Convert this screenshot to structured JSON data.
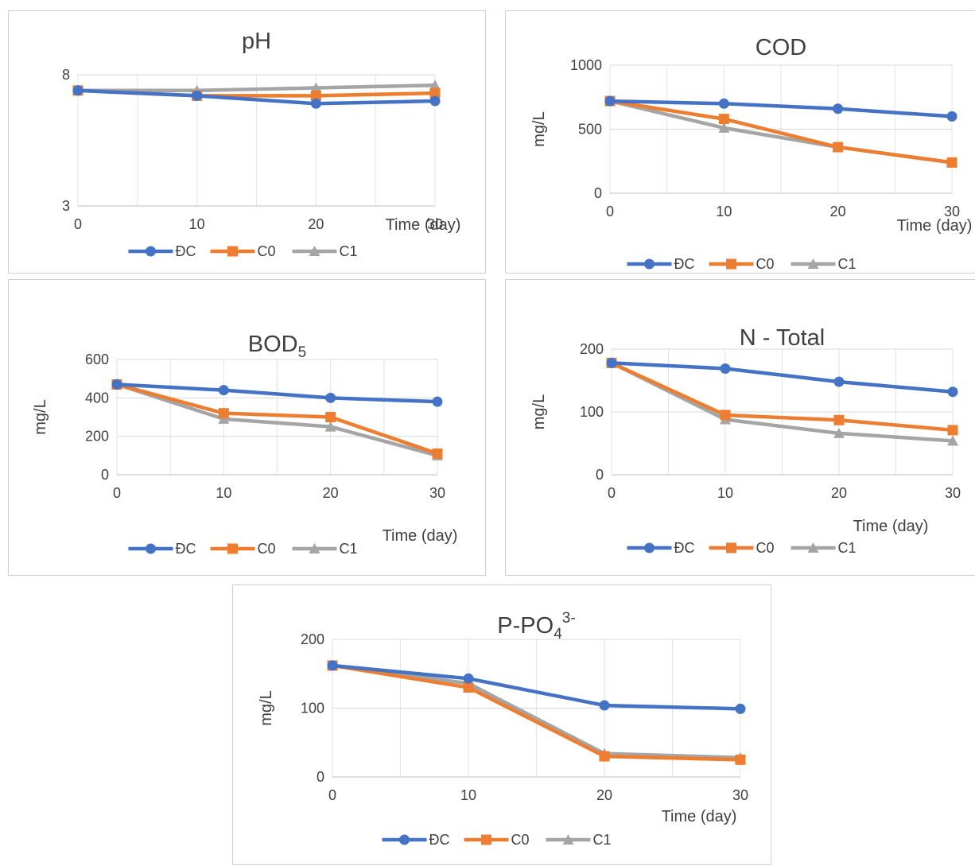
{
  "colors": {
    "DC": "#4472C4",
    "C0": "#ED7D31",
    "C1": "#A5A5A5"
  },
  "chart_data": [
    {
      "type": "line",
      "title": "pH",
      "title_sub": "",
      "title_sup": "",
      "xlabel": "Time (day)",
      "ylabel": "",
      "x": [
        0,
        10,
        20,
        30
      ],
      "xticks": [
        "0",
        "10",
        "20",
        "30"
      ],
      "yticks": [
        "3",
        "8"
      ],
      "ylim": [
        3,
        8
      ],
      "series": [
        {
          "name": "ĐC",
          "marker": "circle",
          "color": "#4472C4",
          "values": [
            7.4,
            7.2,
            6.9,
            7.0
          ]
        },
        {
          "name": "C0",
          "marker": "square",
          "color": "#ED7D31",
          "values": [
            7.4,
            7.2,
            7.2,
            7.3
          ]
        },
        {
          "name": "C1",
          "marker": "triangle",
          "color": "#A5A5A5",
          "values": [
            7.4,
            7.4,
            7.5,
            7.6
          ]
        }
      ],
      "legend": "bottom"
    },
    {
      "type": "line",
      "title": "COD",
      "title_sub": "",
      "title_sup": "",
      "xlabel": "Time (day)",
      "ylabel": "mg/L",
      "x": [
        0,
        10,
        20,
        30
      ],
      "xticks": [
        "0",
        "10",
        "20",
        "30"
      ],
      "yticks": [
        "0",
        "500",
        "1000"
      ],
      "ylim": [
        0,
        1000
      ],
      "series": [
        {
          "name": "ĐC",
          "marker": "circle",
          "color": "#4472C4",
          "values": [
            720,
            700,
            660,
            600
          ]
        },
        {
          "name": "C0",
          "marker": "square",
          "color": "#ED7D31",
          "values": [
            720,
            580,
            360,
            240
          ]
        },
        {
          "name": "C1",
          "marker": "triangle",
          "color": "#A5A5A5",
          "values": [
            720,
            510,
            360,
            240
          ]
        }
      ],
      "legend": "bottom"
    },
    {
      "type": "line",
      "title": "BOD",
      "title_sub": "5",
      "title_sup": "",
      "xlabel": "Time (day)",
      "ylabel": "mg/L",
      "x": [
        0,
        10,
        20,
        30
      ],
      "xticks": [
        "0",
        "10",
        "20",
        "30"
      ],
      "yticks": [
        "0",
        "200",
        "400",
        "600"
      ],
      "ylim": [
        0,
        600
      ],
      "series": [
        {
          "name": "ĐC",
          "marker": "circle",
          "color": "#4472C4",
          "values": [
            470,
            440,
            400,
            380
          ]
        },
        {
          "name": "C0",
          "marker": "square",
          "color": "#ED7D31",
          "values": [
            470,
            320,
            300,
            110
          ]
        },
        {
          "name": "C1",
          "marker": "triangle",
          "color": "#A5A5A5",
          "values": [
            470,
            290,
            250,
            100
          ]
        }
      ],
      "legend": "bottom"
    },
    {
      "type": "line",
      "title": "N - Total",
      "title_sub": "",
      "title_sup": "",
      "xlabel": "Time (day)",
      "ylabel": "mg/L",
      "x": [
        0,
        10,
        20,
        30
      ],
      "xticks": [
        "0",
        "10",
        "20",
        "30"
      ],
      "yticks": [
        "0",
        "100",
        "200"
      ],
      "ylim": [
        0,
        200
      ],
      "series": [
        {
          "name": "ĐC",
          "marker": "circle",
          "color": "#4472C4",
          "values": [
            178,
            169,
            148,
            132
          ]
        },
        {
          "name": "C0",
          "marker": "square",
          "color": "#ED7D31",
          "values": [
            178,
            95,
            87,
            71
          ]
        },
        {
          "name": "C1",
          "marker": "triangle",
          "color": "#A5A5A5",
          "values": [
            178,
            88,
            66,
            54
          ]
        }
      ],
      "legend": "bottom"
    },
    {
      "type": "line",
      "title": "P-PO",
      "title_sub": "4",
      "title_sup": "3-",
      "xlabel": "Time (day)",
      "ylabel": "mg/L",
      "x": [
        0,
        10,
        20,
        30
      ],
      "xticks": [
        "0",
        "10",
        "20",
        "30"
      ],
      "yticks": [
        "0",
        "100",
        "200"
      ],
      "ylim": [
        0,
        200
      ],
      "series": [
        {
          "name": "ĐC",
          "marker": "circle",
          "color": "#4472C4",
          "values": [
            162,
            143,
            104,
            99
          ]
        },
        {
          "name": "C0",
          "marker": "square",
          "color": "#ED7D31",
          "values": [
            162,
            130,
            30,
            25
          ]
        },
        {
          "name": "C1",
          "marker": "triangle",
          "color": "#A5A5A5",
          "values": [
            162,
            136,
            34,
            28
          ]
        }
      ],
      "legend": "bottom"
    }
  ]
}
